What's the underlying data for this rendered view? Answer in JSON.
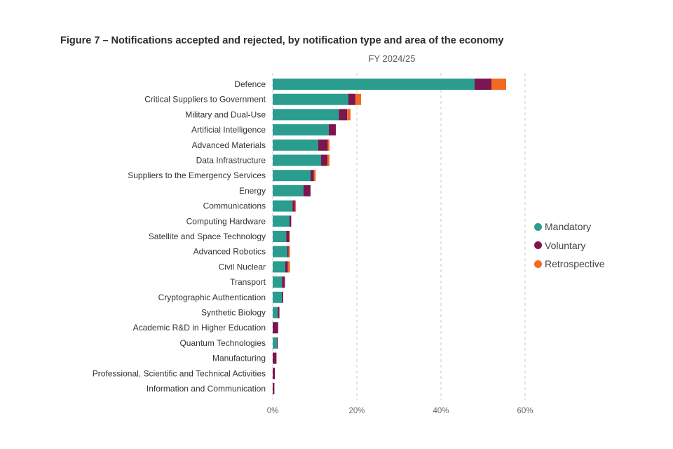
{
  "figure": {
    "title": "Figure 7 – Notifications accepted and rejected, by notification type and area of the economy",
    "subtitle": "FY 2024/25"
  },
  "chart_data": {
    "type": "bar",
    "orientation": "horizontal",
    "stacked": true,
    "title": "Figure 7 – Notifications accepted and rejected, by notification type and area of the economy",
    "subtitle": "FY 2024/25",
    "xlabel": "",
    "ylabel": "",
    "xlim": [
      0,
      60
    ],
    "x_ticks": [
      "0%",
      "20%",
      "40%",
      "60%"
    ],
    "x_tick_values": [
      0,
      20,
      40,
      60
    ],
    "grid": "vertical dashed",
    "legend_position": "right",
    "categories": [
      "Defence",
      "Critical Suppliers to Government",
      "Military and Dual-Use",
      "Artificial Intelligence",
      "Advanced Materials",
      "Data Infrastructure",
      "Suppliers to the Emergency Services",
      "Energy",
      "Communications",
      "Computing Hardware",
      "Satellite and Space Technology",
      "Advanced Robotics",
      "Civil Nuclear",
      "Transport",
      "Cryptographic Authentication",
      "Synthetic Biology",
      "Academic R&D in Higher Education",
      "Quantum Technologies",
      "Manufacturing",
      "Professional, Scientific and Technical Activities",
      "Information and Communication"
    ],
    "series": [
      {
        "name": "Mandatory",
        "color": "#2a9d8f",
        "values": [
          48.0,
          18.0,
          15.7,
          13.3,
          10.8,
          11.5,
          9.0,
          7.3,
          4.7,
          4.0,
          3.2,
          3.5,
          3.0,
          2.2,
          2.2,
          1.2,
          0.0,
          1.0,
          0.0,
          0.0,
          0.0
        ]
      },
      {
        "name": "Voluntary",
        "color": "#7b1650",
        "values": [
          4.0,
          1.7,
          2.0,
          1.7,
          2.3,
          1.5,
          0.8,
          1.7,
          0.6,
          0.4,
          0.7,
          0.3,
          0.6,
          0.7,
          0.3,
          0.4,
          1.3,
          0.2,
          0.9,
          0.5,
          0.4
        ]
      },
      {
        "name": "Retrospective",
        "color": "#f26a21",
        "values": [
          3.5,
          1.3,
          0.8,
          0.0,
          0.4,
          0.5,
          0.4,
          0.0,
          0.2,
          0.0,
          0.2,
          0.3,
          0.5,
          0.0,
          0.0,
          0.0,
          0.0,
          0.0,
          0.0,
          0.0,
          0.0
        ]
      }
    ]
  }
}
